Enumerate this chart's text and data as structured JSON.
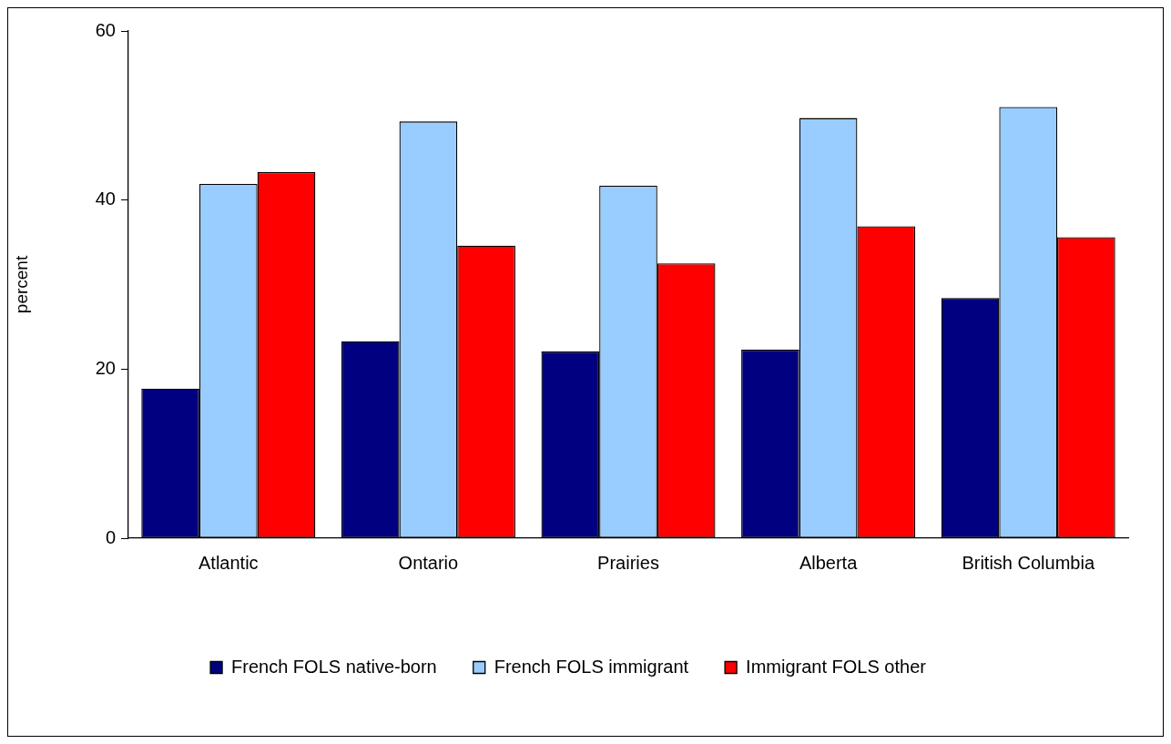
{
  "chart_data": {
    "type": "bar",
    "ylabel": "percent",
    "categories": [
      "Atlantic",
      "Ontario",
      "Prairies",
      "Alberta",
      "British Columbia"
    ],
    "series": [
      {
        "name": "French FOLS native-born",
        "color": "#000080",
        "values": [
          17.7,
          23.3,
          22.1,
          22.3,
          28.4
        ]
      },
      {
        "name": "French FOLS immigrant",
        "color": "#99ccff",
        "values": [
          41.9,
          49.3,
          41.7,
          49.7,
          51.0
        ]
      },
      {
        "name": "Immigrant FOLS other",
        "color": "#ff0000",
        "values": [
          43.3,
          34.6,
          32.5,
          36.9,
          35.6
        ]
      }
    ],
    "ylim": [
      0,
      60
    ],
    "yticks": [
      0,
      20,
      40,
      60
    ],
    "grid": false,
    "legend": "bottom"
  }
}
